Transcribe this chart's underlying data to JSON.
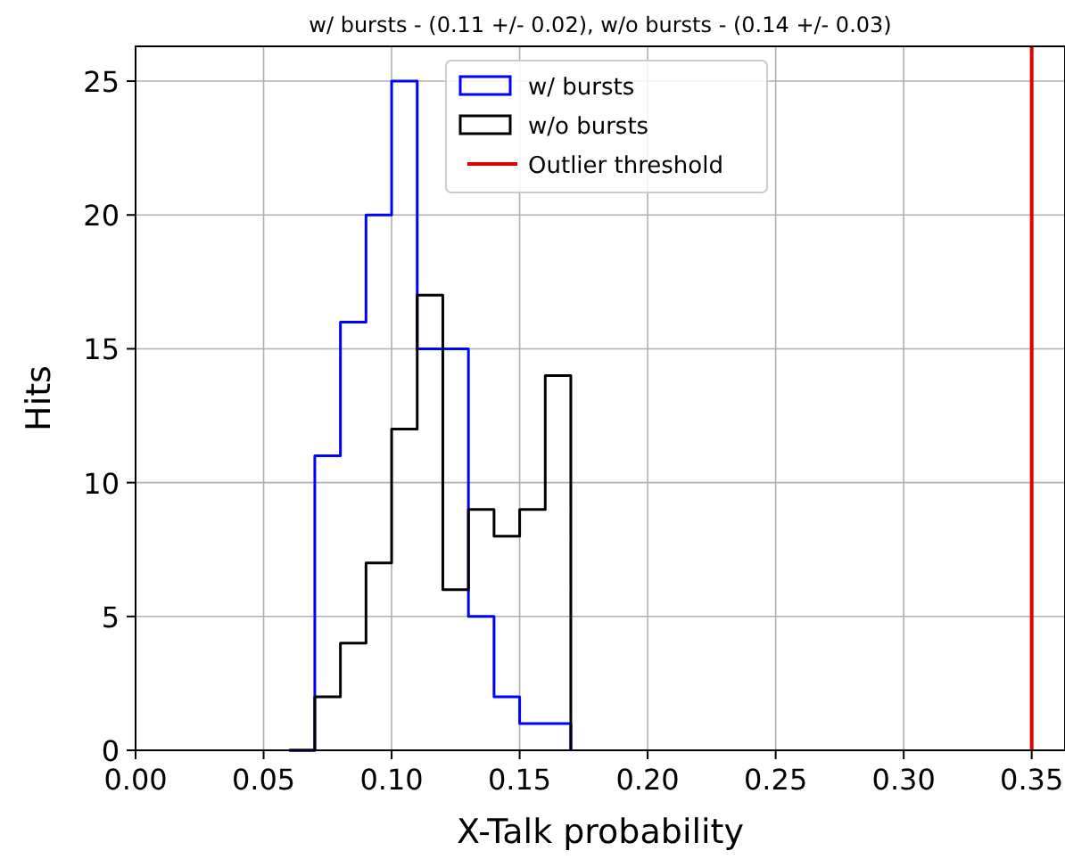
{
  "chart_data": {
    "type": "histogram",
    "title": "w/ bursts - (0.11 +/- 0.02), w/o bursts - (0.14 +/- 0.03)",
    "xlabel": "X-Talk probability",
    "ylabel": "Hits",
    "bins": [
      0.06,
      0.07,
      0.08,
      0.09,
      0.1,
      0.11,
      0.12,
      0.13,
      0.14,
      0.15,
      0.16,
      0.17
    ],
    "series": [
      {
        "name": "w/ bursts",
        "color": "#0000ff",
        "values": [
          0,
          11,
          16,
          20,
          25,
          15,
          15,
          5,
          2,
          1,
          1
        ]
      },
      {
        "name": "w/o bursts",
        "color": "#000000",
        "values": [
          0,
          2,
          4,
          7,
          12,
          17,
          6,
          9,
          8,
          9,
          14
        ]
      },
      {
        "name": "Outlier threshold",
        "type": "line",
        "color": "#e00000",
        "x": [
          0.35,
          0.35
        ],
        "values": [
          0,
          26.3
        ]
      }
    ],
    "xlim": [
      0,
      0.363
    ],
    "xticks": [
      {
        "value": 0,
        "label": "0.00"
      },
      {
        "value": 0.05,
        "label": "0.05"
      },
      {
        "value": 0.1,
        "label": "0.10"
      },
      {
        "value": 0.15,
        "label": "0.15"
      },
      {
        "value": 0.2,
        "label": "0.20"
      },
      {
        "value": 0.25,
        "label": "0.25"
      },
      {
        "value": 0.3,
        "label": "0.30"
      },
      {
        "value": 0.35,
        "label": "0.35"
      }
    ],
    "ylim": [
      0,
      26.3
    ],
    "yticks": [
      0,
      5,
      10,
      15,
      20,
      25
    ],
    "grid": true,
    "legend": "top"
  }
}
